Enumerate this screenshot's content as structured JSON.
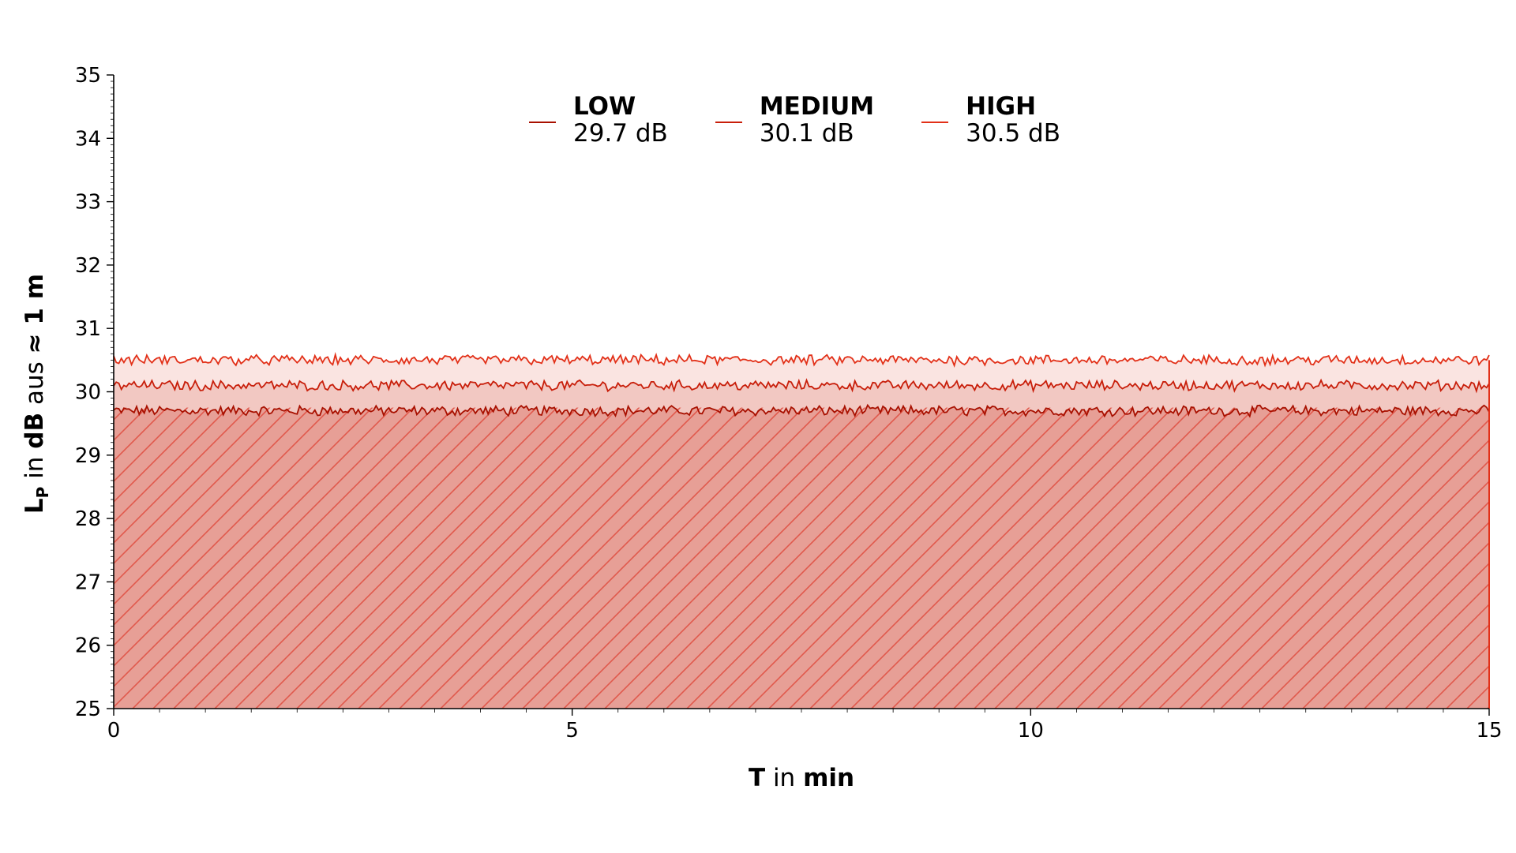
{
  "chart_data": {
    "type": "area",
    "xlabel_parts": [
      {
        "text": "T",
        "bold": true
      },
      {
        "text": " in ",
        "bold": false
      },
      {
        "text": "min",
        "bold": true
      }
    ],
    "ylabel_parts": [
      {
        "text": "L",
        "bold": true
      },
      {
        "text": "P",
        "bold": true,
        "sub": true
      },
      {
        "text": " in ",
        "bold": false
      },
      {
        "text": "dB",
        "bold": true
      },
      {
        "text": " aus ",
        "bold": false
      },
      {
        "text": "≈ 1 m",
        "bold": true
      }
    ],
    "xlim": [
      0,
      15
    ],
    "ylim": [
      25,
      35
    ],
    "xticks": [
      "0",
      "5",
      "10",
      "15"
    ],
    "yticks": [
      "25",
      "26",
      "27",
      "28",
      "29",
      "30",
      "31",
      "32",
      "33",
      "34",
      "35"
    ],
    "grid": false,
    "hatch": "diagonal",
    "legend_placement": "top-center",
    "series": [
      {
        "name": "LOW",
        "value_label": "29.7 dB",
        "mean": 29.7,
        "noise": 0.07,
        "color": "#a81000"
      },
      {
        "name": "MEDIUM",
        "value_label": "30.1 dB",
        "mean": 30.1,
        "noise": 0.07,
        "color": "#c81e0a"
      },
      {
        "name": "HIGH",
        "value_label": "30.5 dB",
        "mean": 30.5,
        "noise": 0.07,
        "color": "#e23018"
      }
    ]
  }
}
